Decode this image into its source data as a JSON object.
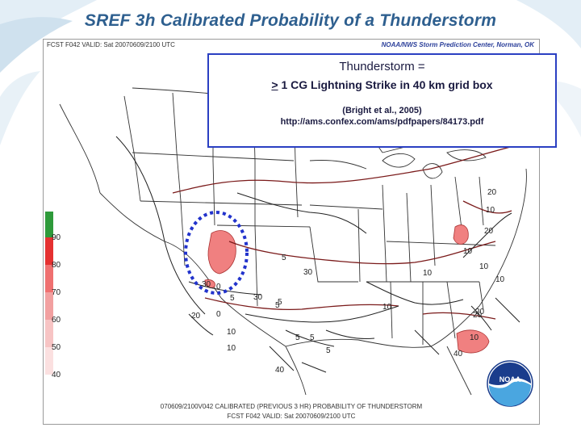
{
  "slide": {
    "title": "SREF 3h Calibrated Probability of a Thunderstorm"
  },
  "map": {
    "header_left": "FCST F042  VALID: Sat 20070609/2100 UTC",
    "header_right": "NOAA/NWS Storm Prediction Center, Norman, OK",
    "footer_line1": "070609/2100V042 CALIBRATED (PREVIOUS 3 HR) PROBABILITY OF THUNDERSTORM",
    "footer_line2": "FCST F042  VALID: Sat 20070609/2100 UTC",
    "contour_labels": [
      "20",
      "10",
      "20",
      "10",
      "5",
      "30",
      "10",
      "10",
      "20",
      "10",
      "20",
      "10",
      "0",
      "10",
      "5",
      "5",
      "5",
      "40",
      "30",
      "5",
      "10",
      "0",
      "5",
      "20",
      "30",
      "40",
      "10",
      "5"
    ],
    "legend_levels": [
      "90",
      "80",
      "70",
      "60",
      "50",
      "40"
    ],
    "logo_text": "NOAA"
  },
  "infobox": {
    "title": "Thunderstorm =",
    "def_symbol": ">",
    "definition": " 1 CG Lightning Strike in 40 km grid box",
    "reference": "(Bright et al., 2005)",
    "url": "http://ams.confex.com/ams/pdfpapers/84173.pdf"
  },
  "colors": {
    "title": "#2e5f8f",
    "box_border": "#2a3fc2",
    "highlight_circle": "#2233cc",
    "probability_fill": "#f08080",
    "contour_dark": "#7a1a1a",
    "contour_black": "#222222"
  }
}
